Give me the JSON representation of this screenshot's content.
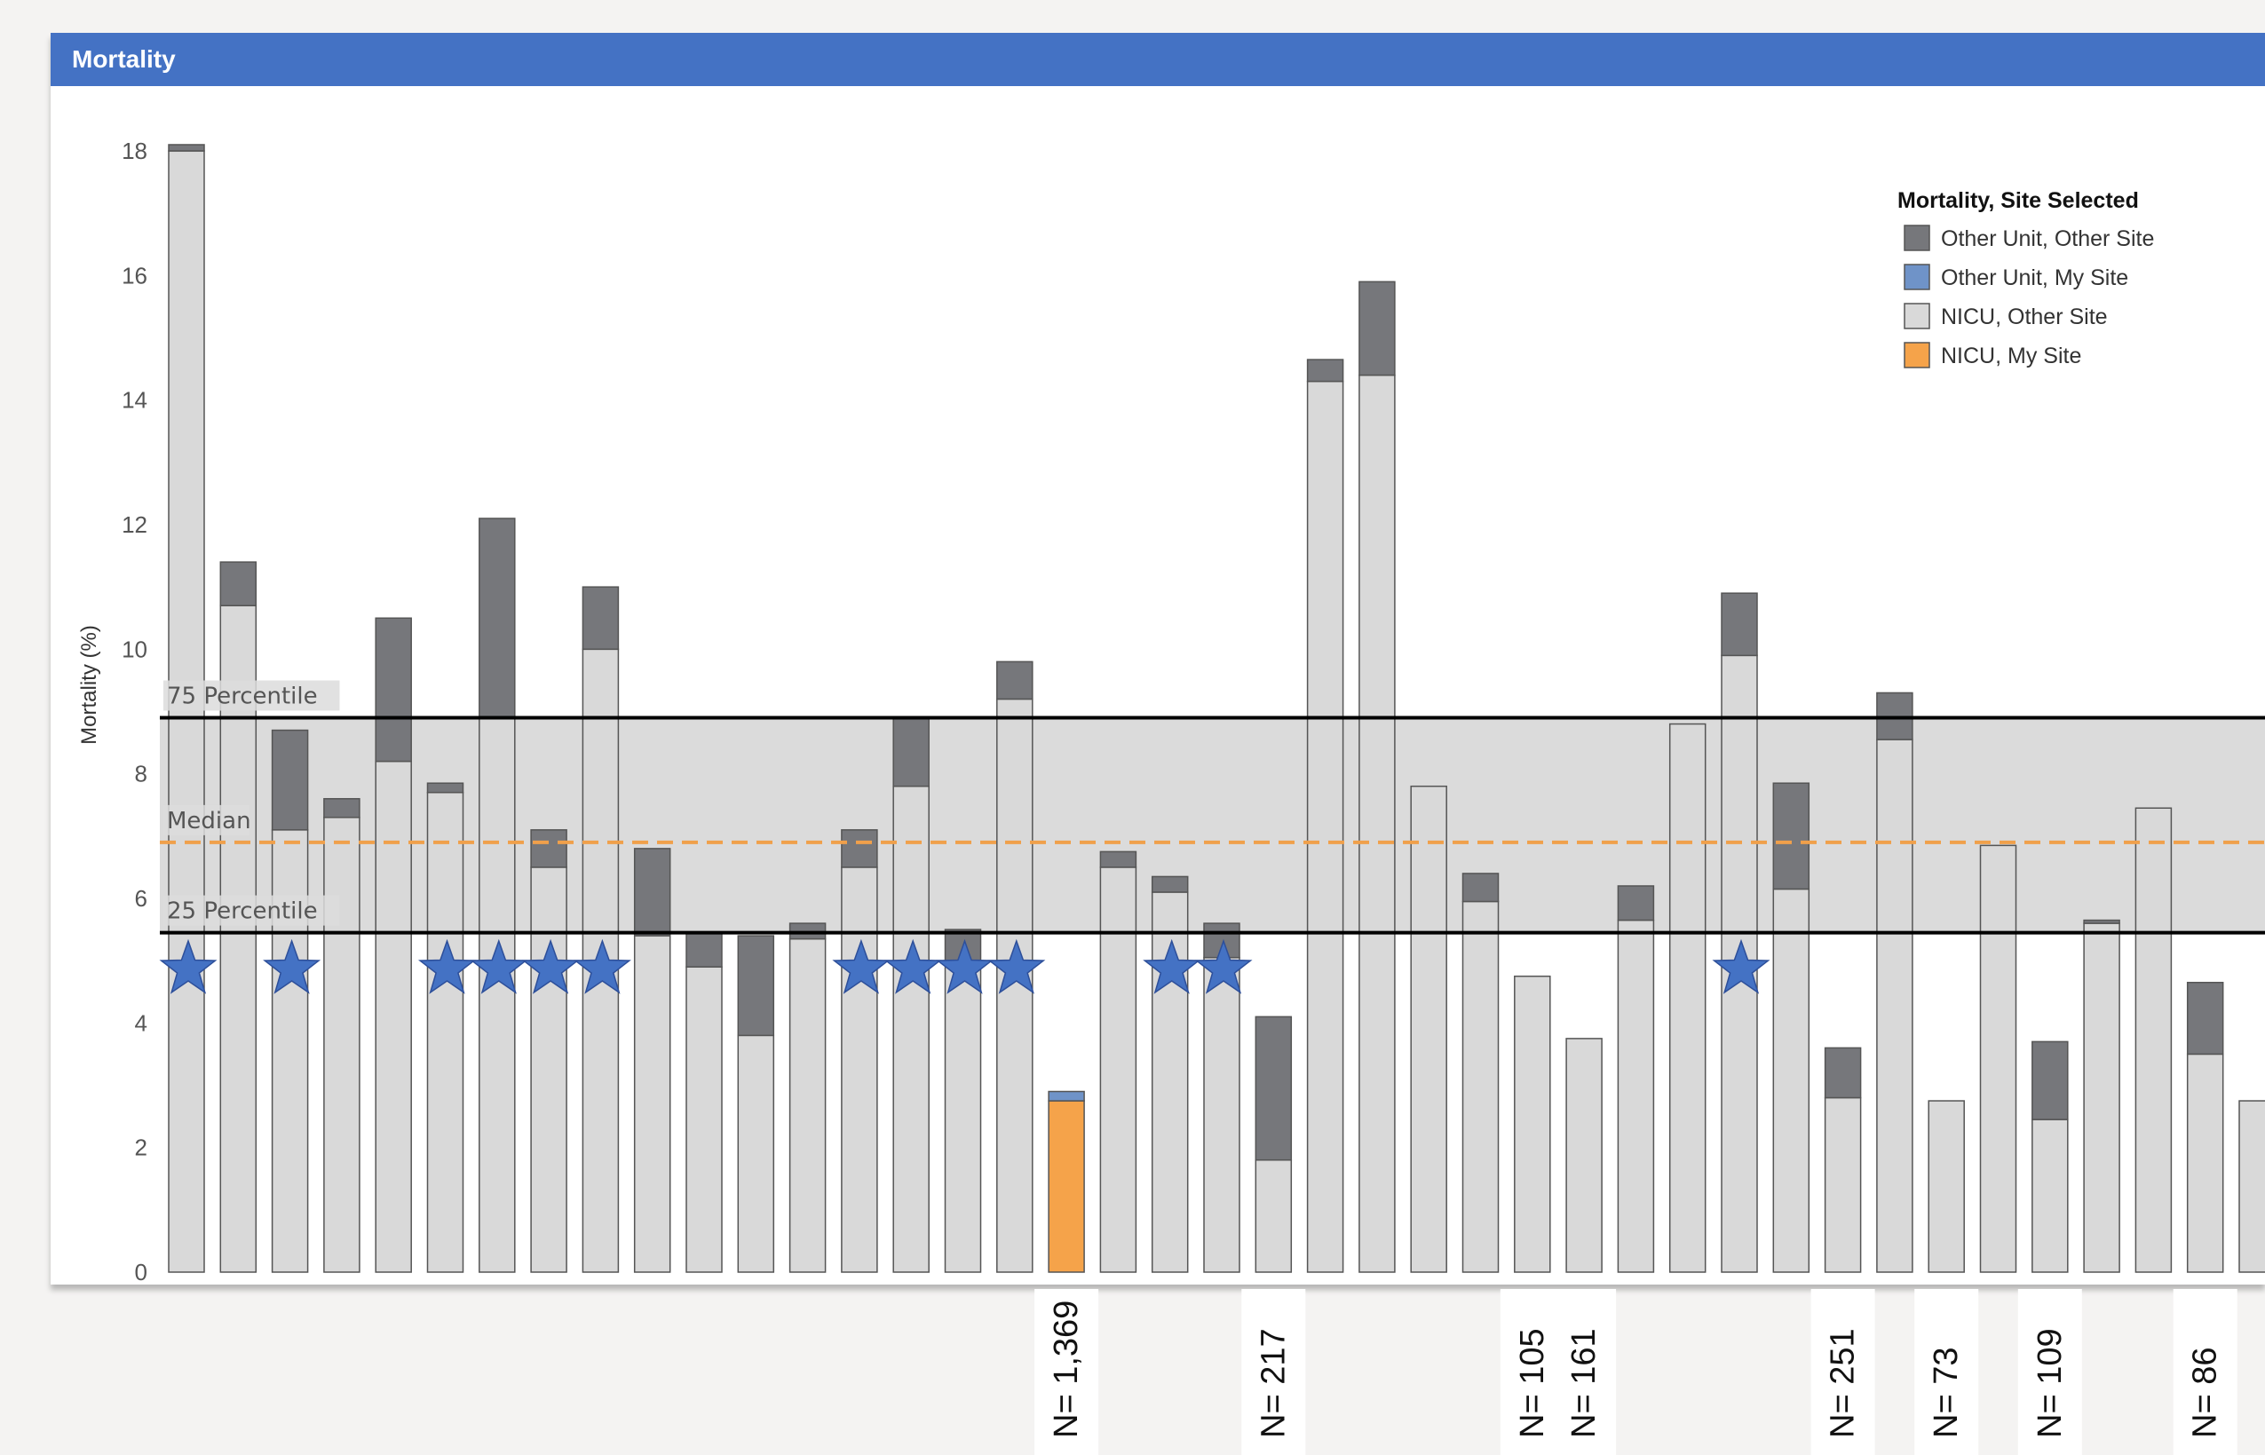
{
  "panel": {
    "title": "Mortality"
  },
  "chart_data": {
    "type": "bar",
    "stacked": true,
    "title": "",
    "ylabel": "Mortality (%)",
    "xlabel": "",
    "ylim": [
      0,
      18
    ],
    "yticks": [
      0,
      2,
      4,
      6,
      8,
      10,
      12,
      14,
      16,
      18
    ],
    "grid": false,
    "legend": {
      "title": "Mortality, Site Selected",
      "position": "top-right",
      "entries": [
        {
          "label": "Other Unit, Other Site",
          "color": "#76777b"
        },
        {
          "label": "Other Unit, My Site",
          "color": "#6f93c8"
        },
        {
          "label": "NICU, Other Site",
          "color": "#d9d9d9"
        },
        {
          "label": "NICU, My Site",
          "color": "#f5a34a"
        }
      ]
    },
    "reference_lines": [
      {
        "label": "75 Percentile",
        "value": 8.9,
        "style": "solid",
        "color": "#000000"
      },
      {
        "label": "Median",
        "value": 6.9,
        "style": "dashed",
        "color": "#f0a04b"
      },
      {
        "label": "25 Percentile",
        "value": 5.45,
        "style": "solid",
        "color": "#000000"
      }
    ],
    "band": {
      "from": 5.45,
      "to": 8.9,
      "color": "#d9d9d9"
    },
    "bars": [
      {
        "nicu": 18.0,
        "other": 0.1,
        "star": true
      },
      {
        "nicu": 10.7,
        "other": 0.7
      },
      {
        "nicu": 7.1,
        "other": 1.6,
        "star": true
      },
      {
        "nicu": 7.3,
        "other": 0.3
      },
      {
        "nicu": 8.2,
        "other": 2.3
      },
      {
        "nicu": 7.7,
        "other": 0.15,
        "star": true
      },
      {
        "nicu": 8.9,
        "other": 3.2,
        "star": true
      },
      {
        "nicu": 6.5,
        "other": 0.6,
        "star": true
      },
      {
        "nicu": 10.0,
        "other": 1.0,
        "star": true
      },
      {
        "nicu": 5.4,
        "other": 1.4
      },
      {
        "nicu": 4.9,
        "other": 0.55
      },
      {
        "nicu": 3.8,
        "other": 1.6
      },
      {
        "nicu": 5.35,
        "other": 0.25
      },
      {
        "nicu": 6.5,
        "other": 0.6,
        "star": true
      },
      {
        "nicu": 7.8,
        "other": 1.1,
        "star": true
      },
      {
        "nicu": 5.0,
        "other": 0.5,
        "star": true
      },
      {
        "nicu": 9.2,
        "other": 0.6,
        "star": true
      },
      {
        "mysite_nicu": 2.75,
        "mysite_other": 0.15,
        "n_label": "N= 1,369"
      },
      {
        "nicu": 6.5,
        "other": 0.25
      },
      {
        "nicu": 6.1,
        "other": 0.25,
        "star": true
      },
      {
        "nicu": 5.05,
        "other": 0.55,
        "star": true
      },
      {
        "nicu": 1.8,
        "other": 2.3,
        "n_label": "N= 217"
      },
      {
        "nicu": 14.3,
        "other": 0.35
      },
      {
        "nicu": 14.4,
        "other": 1.5
      },
      {
        "nicu": 7.8,
        "other": 0
      },
      {
        "nicu": 5.95,
        "other": 0.45
      },
      {
        "nicu": 4.75,
        "other": 0,
        "n_label": "N= 105"
      },
      {
        "nicu": 3.75,
        "other": 0,
        "n_label": "N= 161"
      },
      {
        "nicu": 5.65,
        "other": 0.55
      },
      {
        "nicu": 8.8,
        "other": 0
      },
      {
        "nicu": 9.9,
        "other": 1.0,
        "star": true
      },
      {
        "nicu": 6.15,
        "other": 1.7
      },
      {
        "nicu": 2.8,
        "other": 0.8,
        "n_label": "N= 251"
      },
      {
        "nicu": 8.55,
        "other": 0.75
      },
      {
        "nicu": 2.75,
        "other": 0,
        "n_label": "N= 73"
      },
      {
        "nicu": 6.85,
        "other": 0
      },
      {
        "nicu": 2.45,
        "other": 1.25,
        "n_label": "N= 109"
      },
      {
        "nicu": 5.6,
        "other": 0.05
      },
      {
        "nicu": 7.45,
        "other": 0
      },
      {
        "nicu": 3.5,
        "other": 1.15,
        "n_label": "N= 86"
      },
      {
        "nicu": 2.75,
        "other": 0
      }
    ]
  }
}
